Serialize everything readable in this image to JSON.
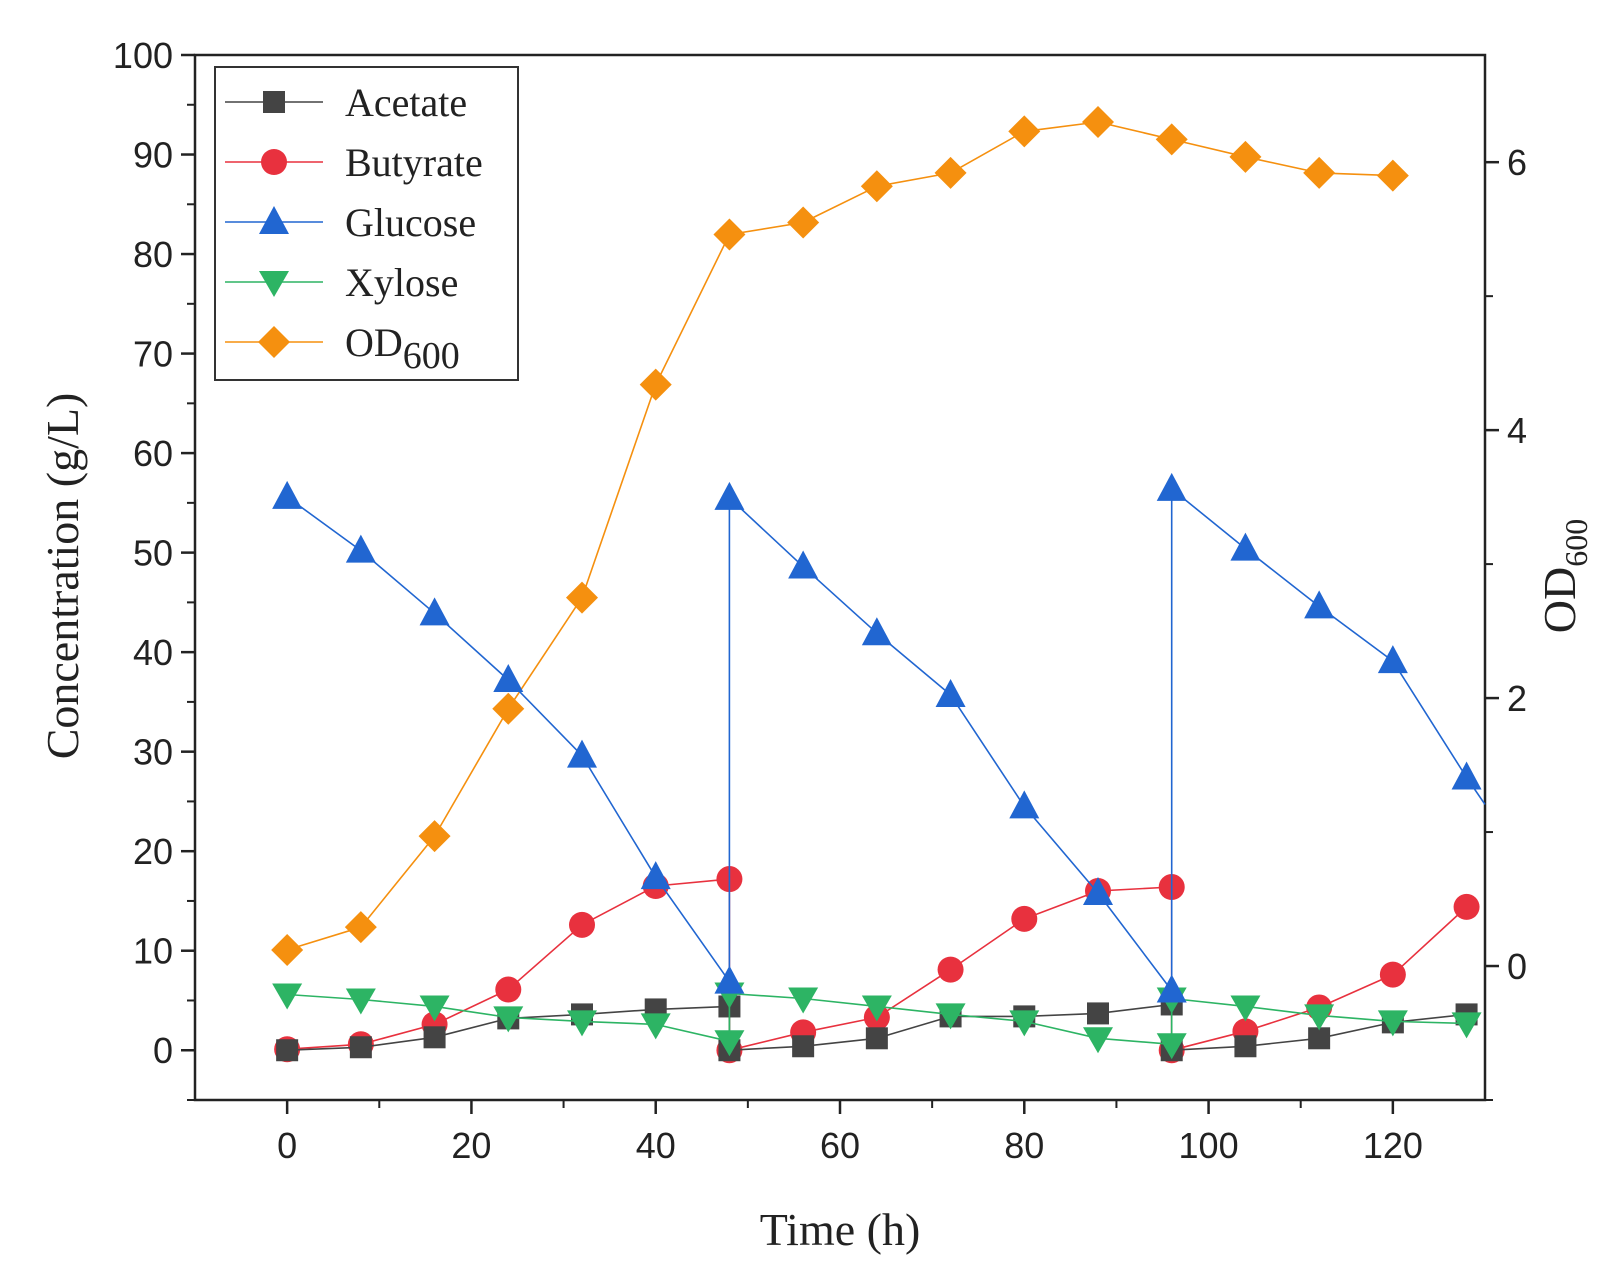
{
  "chart_data": {
    "type": "line",
    "xlabel": "Time (h)",
    "ylabel": "Concentration (g/L)",
    "y2label": {
      "main": "OD",
      "sub": "600"
    },
    "xlim": [
      -10,
      130
    ],
    "ylim": [
      -5,
      100
    ],
    "y2lim": [
      -1.0,
      6.8
    ],
    "xticks": [
      0,
      20,
      40,
      60,
      80,
      100,
      120
    ],
    "yticks": [
      0,
      10,
      20,
      30,
      40,
      50,
      60,
      70,
      80,
      90,
      100
    ],
    "y2ticks": [
      0,
      2,
      4,
      6
    ],
    "legend_position": "top-left",
    "series": [
      {
        "name": "Acetate",
        "axis": "left",
        "marker": "square",
        "color": "#444444",
        "x": [
          0,
          8,
          16,
          24,
          32,
          40,
          48,
          48,
          56,
          64,
          72,
          80,
          88,
          96,
          96,
          104,
          112,
          120,
          128
        ],
        "y": [
          0.0,
          0.3,
          1.3,
          3.2,
          3.6,
          4.1,
          4.4,
          0.0,
          0.4,
          1.2,
          3.4,
          3.4,
          3.7,
          4.6,
          0.0,
          0.4,
          1.2,
          2.8,
          3.6
        ]
      },
      {
        "name": "Butyrate",
        "axis": "left",
        "marker": "circle",
        "color": "#e8313e",
        "x": [
          0,
          8,
          16,
          24,
          32,
          40,
          48,
          48,
          56,
          64,
          72,
          80,
          88,
          96,
          96,
          104,
          112,
          120,
          128
        ],
        "y": [
          0.1,
          0.6,
          2.6,
          6.1,
          12.6,
          16.5,
          17.2,
          0.0,
          1.8,
          3.3,
          8.1,
          13.2,
          16.0,
          16.4,
          0.0,
          1.9,
          4.3,
          7.6,
          14.4
        ]
      },
      {
        "name": "Glucose",
        "axis": "left",
        "marker": "triangle-up",
        "color": "#2166d1",
        "x": [
          0,
          8,
          16,
          24,
          32,
          40,
          48,
          48,
          56,
          64,
          72,
          80,
          88,
          96,
          96,
          104,
          112,
          120,
          128,
          130
        ],
        "y": [
          55.6,
          50.2,
          43.9,
          37.2,
          29.6,
          17.4,
          6.9,
          55.5,
          48.6,
          41.9,
          35.7,
          24.5,
          15.8,
          6.0,
          56.4,
          50.4,
          44.6,
          39.1,
          27.4,
          24.7
        ]
      },
      {
        "name": "Xylose",
        "axis": "left",
        "marker": "triangle-down",
        "color": "#2db464",
        "x": [
          0,
          8,
          16,
          24,
          32,
          40,
          48,
          48,
          56,
          64,
          72,
          80,
          88,
          96,
          96,
          104,
          112,
          120,
          128
        ],
        "y": [
          5.6,
          5.1,
          4.4,
          3.3,
          2.9,
          2.6,
          0.9,
          5.7,
          5.2,
          4.4,
          3.6,
          2.9,
          1.2,
          0.6,
          5.2,
          4.4,
          3.5,
          2.9,
          2.7
        ]
      },
      {
        "name": "OD600",
        "name_main": "OD",
        "name_sub": "600",
        "axis": "right",
        "marker": "diamond",
        "color": "#f5900f",
        "x": [
          0,
          8,
          16,
          24,
          32,
          40,
          48,
          56,
          64,
          72,
          80,
          88,
          96,
          104,
          112,
          120
        ],
        "y": [
          0.12,
          0.29,
          0.97,
          1.92,
          2.75,
          4.34,
          5.46,
          5.55,
          5.82,
          5.92,
          6.23,
          6.3,
          6.17,
          6.04,
          5.92,
          5.9
        ]
      }
    ]
  }
}
